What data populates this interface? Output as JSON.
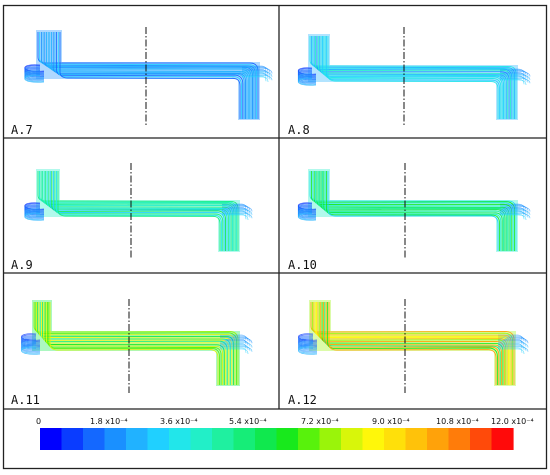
{
  "panels": [
    {
      "id": "p7",
      "label": "A.7",
      "level": 0.2
    },
    {
      "id": "p8",
      "label": "A.8",
      "level": 0.28
    },
    {
      "id": "p9",
      "label": "A.9",
      "level": 0.4
    },
    {
      "id": "p10",
      "label": "A.10",
      "level": 0.45
    },
    {
      "id": "p11",
      "label": "A.11",
      "level": 0.62
    },
    {
      "id": "p12",
      "label": "A.12",
      "level": 0.75
    }
  ],
  "colorbar": {
    "labels": [
      "0",
      "1.8 x10⁻⁴",
      "3.6 x10⁻⁴",
      "5.4 x10⁻⁴",
      "7.2 x10⁻⁴",
      "9.0 x10⁻⁴",
      "10.8 x10⁻⁴",
      "12.0 x10⁻⁴"
    ],
    "colors": [
      "#0000ff",
      "#0a3cff",
      "#1468ff",
      "#1a90ff",
      "#21b2ff",
      "#20d0ff",
      "#22e6ea",
      "#22efc8",
      "#1ff0a0",
      "#16ed78",
      "#10e84e",
      "#18e91c",
      "#58f20c",
      "#9af40a",
      "#d8f60a",
      "#fff70a",
      "#ffe00a",
      "#ffc20a",
      "#ffa20a",
      "#ff7c0a",
      "#ff4a0a",
      "#ff0a0a"
    ]
  }
}
